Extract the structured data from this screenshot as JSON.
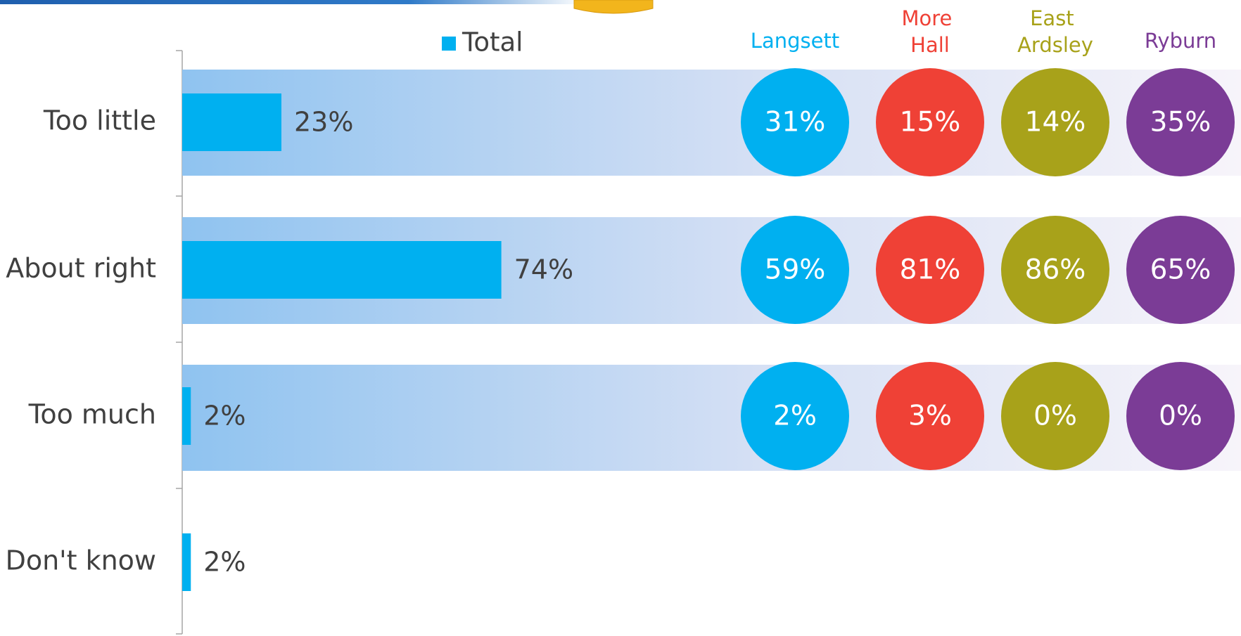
{
  "chart_data": {
    "type": "bar",
    "orientation": "horizontal",
    "categories": [
      "Too little",
      "About right",
      "Too much",
      "Don't know"
    ],
    "series": [
      {
        "name": "Total",
        "color": "#00b0f0",
        "values": [
          23,
          74,
          2,
          2
        ],
        "value_labels": [
          "23%",
          "74%",
          "2%",
          "2%"
        ]
      }
    ],
    "groups": [
      {
        "name": "Langsett",
        "color": "#00b0f0",
        "values": [
          31,
          59,
          2,
          null
        ],
        "value_labels": [
          "31%",
          "59%",
          "2%",
          null
        ]
      },
      {
        "name": "More Hall",
        "color": "#ef4136",
        "values": [
          15,
          81,
          3,
          null
        ],
        "value_labels": [
          "15%",
          "81%",
          "3%",
          null
        ]
      },
      {
        "name": "East Ardsley",
        "color": "#a8a21a",
        "values": [
          14,
          86,
          0,
          null
        ],
        "value_labels": [
          "14%",
          "86%",
          "0%",
          null
        ]
      },
      {
        "name": "Ryburn",
        "color": "#7b3c96",
        "values": [
          35,
          65,
          0,
          null
        ],
        "value_labels": [
          "35%",
          "65%",
          "0%",
          null
        ]
      }
    ]
  }
}
